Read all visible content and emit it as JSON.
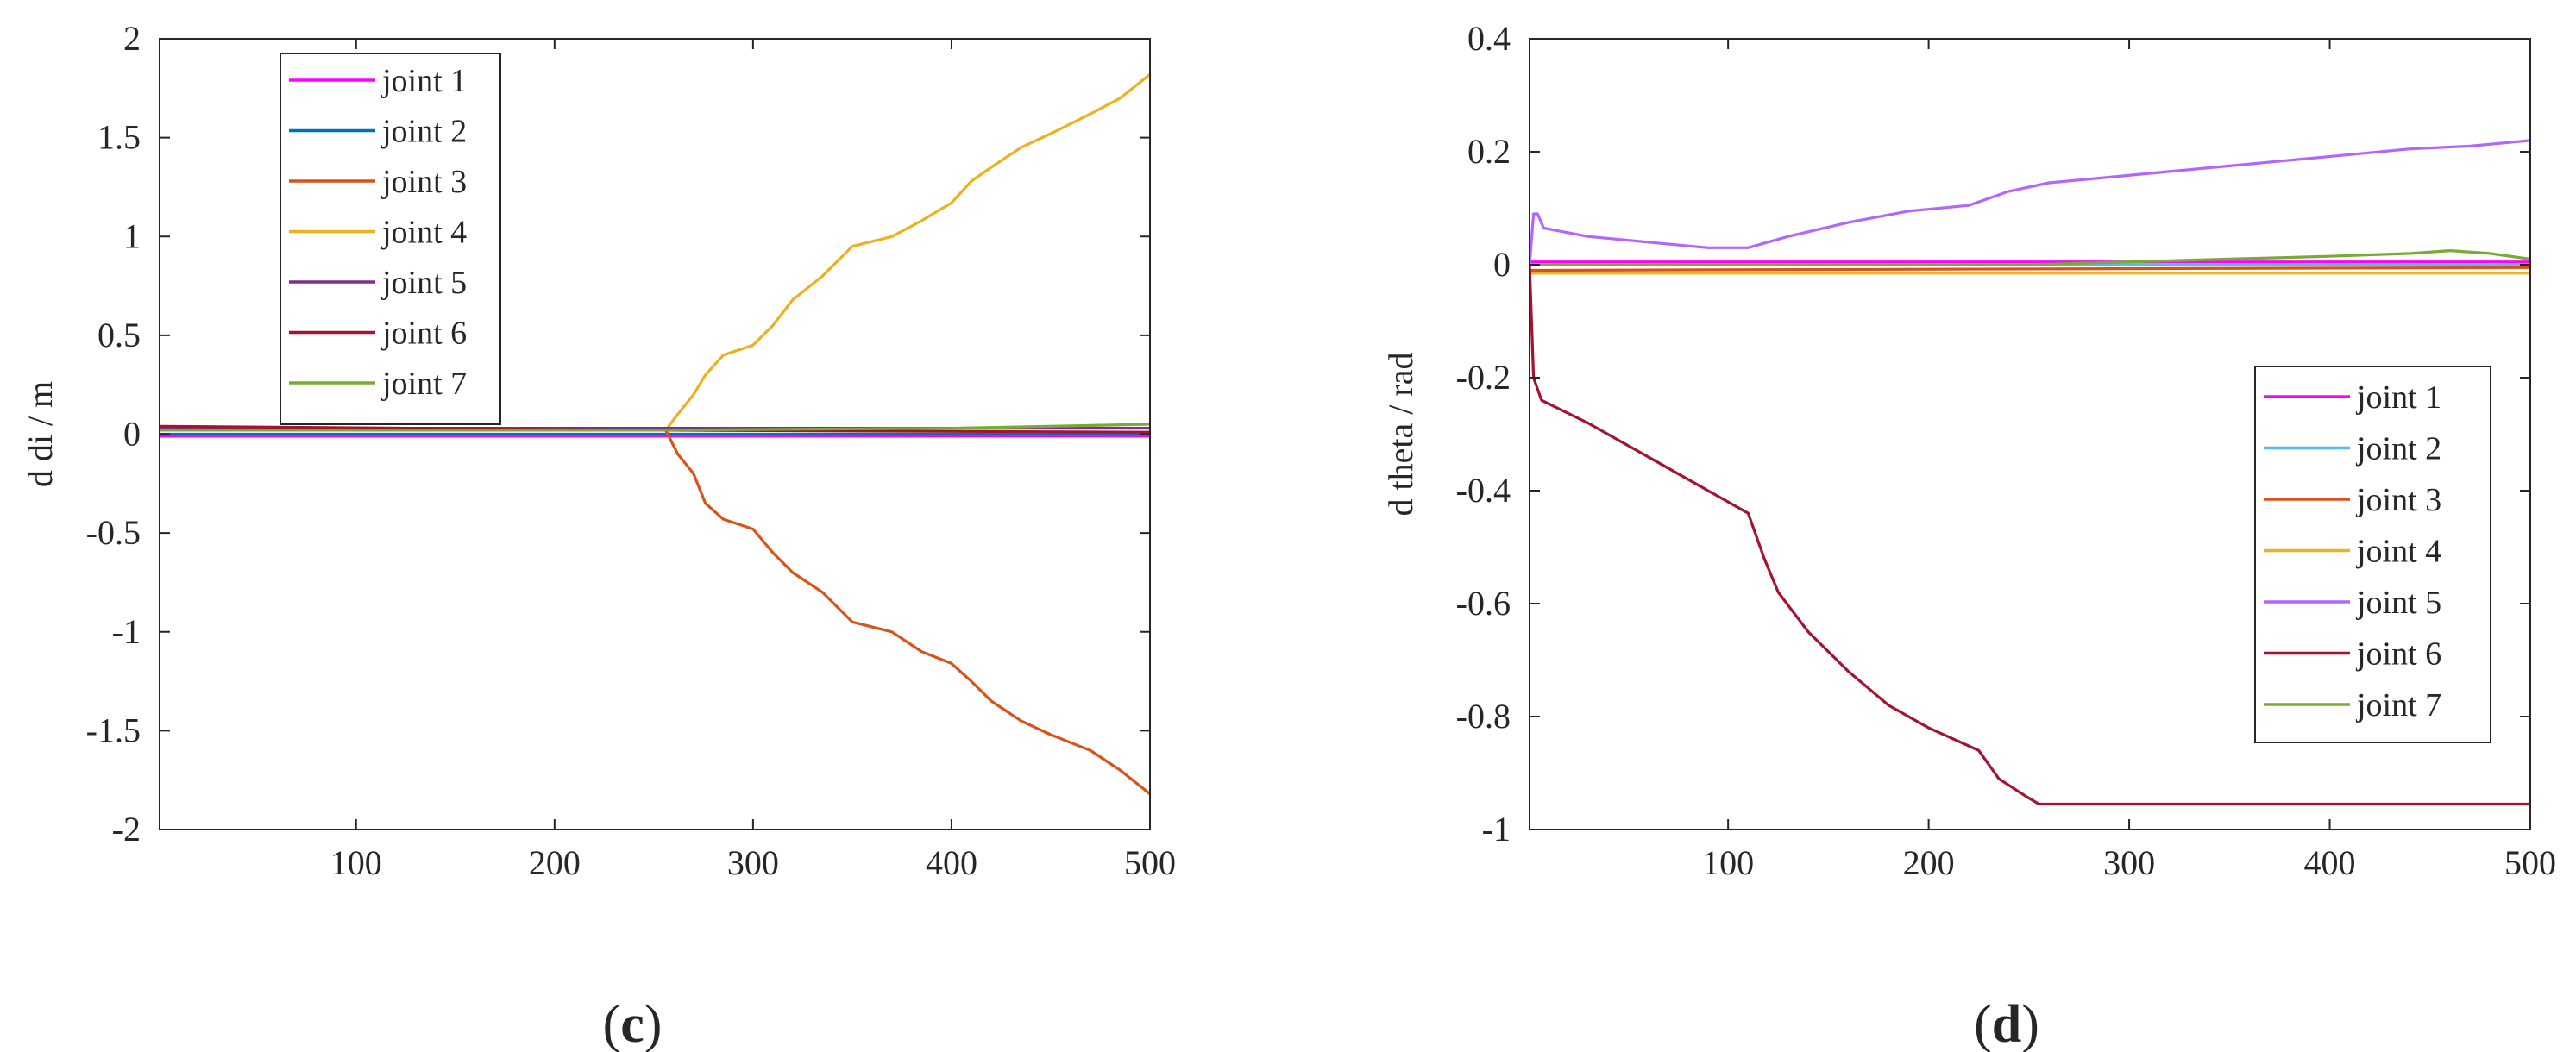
{
  "panels": [
    {
      "letter_open": "(",
      "letter": "c",
      "letter_close": ")"
    },
    {
      "letter_open": "(",
      "letter": "d",
      "letter_close": ")"
    }
  ],
  "chart_data": [
    {
      "type": "line",
      "title": "",
      "xlabel": "",
      "ylabel": "d di / m",
      "xlim": [
        1,
        500
      ],
      "ylim": [
        -2,
        2
      ],
      "xticks": [
        100,
        200,
        300,
        400,
        500
      ],
      "xtick_labels": [
        "100",
        "200",
        "300",
        "400",
        "500"
      ],
      "yticks": [
        2,
        1.5,
        1,
        0.5,
        0,
        -0.5,
        -1,
        -1.5,
        -2
      ],
      "ytick_labels": [
        "2",
        "1.5",
        "1",
        "0.5",
        "0",
        "-0.5",
        "-1",
        "-1.5",
        "-2"
      ],
      "grid": false,
      "legend_position": "top-left",
      "series": [
        {
          "name": "joint 1",
          "color": "#ff00ff",
          "points": [
            [
              1,
              -0.01
            ],
            [
              500,
              -0.01
            ]
          ]
        },
        {
          "name": "joint 2",
          "color": "#0072bd",
          "points": [
            [
              1,
              0.0
            ],
            [
              500,
              0.0
            ]
          ]
        },
        {
          "name": "joint 3",
          "color": "#d95319",
          "points": [
            [
              1,
              0.03
            ],
            [
              256,
              0.02
            ],
            [
              262,
              -0.1
            ],
            [
              270,
              -0.2
            ],
            [
              276,
              -0.35
            ],
            [
              285,
              -0.43
            ],
            [
              300,
              -0.48
            ],
            [
              310,
              -0.6
            ],
            [
              320,
              -0.7
            ],
            [
              335,
              -0.8
            ],
            [
              350,
              -0.95
            ],
            [
              370,
              -1.0
            ],
            [
              385,
              -1.1
            ],
            [
              400,
              -1.16
            ],
            [
              410,
              -1.25
            ],
            [
              420,
              -1.35
            ],
            [
              435,
              -1.45
            ],
            [
              450,
              -1.52
            ],
            [
              470,
              -1.6
            ],
            [
              485,
              -1.7
            ],
            [
              500,
              -1.82
            ]
          ]
        },
        {
          "name": "joint 4",
          "color": "#edb120",
          "points": [
            [
              1,
              0.02
            ],
            [
              256,
              0.02
            ],
            [
              262,
              0.1
            ],
            [
              270,
              0.2
            ],
            [
              276,
              0.3
            ],
            [
              285,
              0.4
            ],
            [
              300,
              0.45
            ],
            [
              310,
              0.55
            ],
            [
              320,
              0.68
            ],
            [
              335,
              0.8
            ],
            [
              350,
              0.95
            ],
            [
              370,
              1.0
            ],
            [
              385,
              1.08
            ],
            [
              400,
              1.17
            ],
            [
              410,
              1.28
            ],
            [
              420,
              1.35
            ],
            [
              435,
              1.45
            ],
            [
              450,
              1.52
            ],
            [
              470,
              1.62
            ],
            [
              485,
              1.7
            ],
            [
              500,
              1.82
            ]
          ]
        },
        {
          "name": "joint 5",
          "color": "#7e2f8e",
          "points": [
            [
              1,
              0.03
            ],
            [
              500,
              0.03
            ]
          ]
        },
        {
          "name": "joint 6",
          "color": "#a2142f",
          "points": [
            [
              1,
              0.04
            ],
            [
              250,
              0.02
            ],
            [
              500,
              0.01
            ]
          ]
        },
        {
          "name": "joint 7",
          "color": "#77ac30",
          "points": [
            [
              1,
              0.02
            ],
            [
              250,
              0.02
            ],
            [
              400,
              0.03
            ],
            [
              500,
              0.05
            ]
          ]
        }
      ]
    },
    {
      "type": "line",
      "title": "",
      "xlabel": "",
      "ylabel": "d theta / rad",
      "xlim": [
        1,
        500
      ],
      "ylim": [
        -1,
        0.4
      ],
      "xticks": [
        100,
        200,
        300,
        400,
        500
      ],
      "xtick_labels": [
        "100",
        "200",
        "300",
        "400",
        "500"
      ],
      "yticks": [
        0.4,
        0.2,
        0,
        -0.2,
        -0.4,
        -0.6,
        -0.8,
        -1
      ],
      "ytick_labels": [
        "0.4",
        "0.2",
        "0",
        "-0.2",
        "-0.4",
        "-0.6",
        "-0.8",
        "-1"
      ],
      "grid": false,
      "legend_position": "bottom-right",
      "series": [
        {
          "name": "joint 1",
          "color": "#ff00ff",
          "points": [
            [
              1,
              0.005
            ],
            [
              500,
              0.005
            ]
          ]
        },
        {
          "name": "joint 2",
          "color": "#4dbeee",
          "points": [
            [
              1,
              0.0
            ],
            [
              500,
              0.0
            ]
          ]
        },
        {
          "name": "joint 3",
          "color": "#d95319",
          "points": [
            [
              1,
              -0.01
            ],
            [
              500,
              -0.005
            ]
          ]
        },
        {
          "name": "joint 4",
          "color": "#edb120",
          "points": [
            [
              1,
              -0.015
            ],
            [
              500,
              -0.015
            ]
          ]
        },
        {
          "name": "joint 5",
          "color": "#b266ff",
          "points": [
            [
              1,
              0.0
            ],
            [
              3,
              0.09
            ],
            [
              5,
              0.09
            ],
            [
              8,
              0.065
            ],
            [
              30,
              0.05
            ],
            [
              60,
              0.04
            ],
            [
              90,
              0.03
            ],
            [
              110,
              0.03
            ],
            [
              130,
              0.05
            ],
            [
              160,
              0.075
            ],
            [
              190,
              0.095
            ],
            [
              220,
              0.105
            ],
            [
              240,
              0.13
            ],
            [
              260,
              0.145
            ],
            [
              290,
              0.155
            ],
            [
              320,
              0.165
            ],
            [
              350,
              0.175
            ],
            [
              380,
              0.185
            ],
            [
              410,
              0.195
            ],
            [
              440,
              0.205
            ],
            [
              470,
              0.21
            ],
            [
              500,
              0.22
            ]
          ]
        },
        {
          "name": "joint 6",
          "color": "#a2142f",
          "points": [
            [
              1,
              0.0
            ],
            [
              3,
              -0.2
            ],
            [
              7,
              -0.24
            ],
            [
              30,
              -0.28
            ],
            [
              60,
              -0.34
            ],
            [
              90,
              -0.4
            ],
            [
              110,
              -0.44
            ],
            [
              118,
              -0.52
            ],
            [
              125,
              -0.58
            ],
            [
              140,
              -0.65
            ],
            [
              160,
              -0.72
            ],
            [
              180,
              -0.78
            ],
            [
              200,
              -0.82
            ],
            [
              225,
              -0.86
            ],
            [
              235,
              -0.91
            ],
            [
              248,
              -0.94
            ],
            [
              255,
              -0.955
            ],
            [
              500,
              -0.955
            ]
          ]
        },
        {
          "name": "joint 7",
          "color": "#77ac30",
          "points": [
            [
              1,
              0.0
            ],
            [
              250,
              0.0
            ],
            [
              300,
              0.005
            ],
            [
              350,
              0.01
            ],
            [
              400,
              0.015
            ],
            [
              440,
              0.02
            ],
            [
              460,
              0.025
            ],
            [
              480,
              0.02
            ],
            [
              500,
              0.01
            ]
          ]
        }
      ]
    }
  ]
}
